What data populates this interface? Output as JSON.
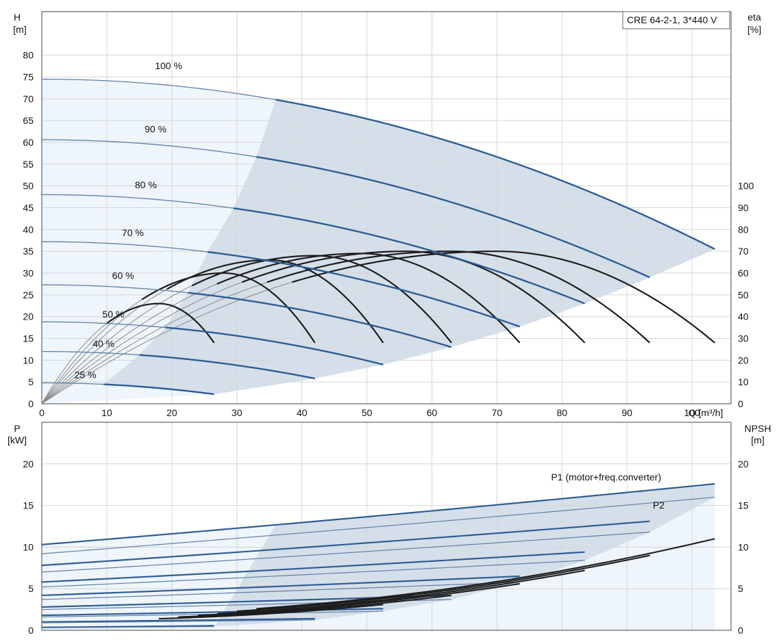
{
  "chart_data": [
    {
      "type": "line",
      "panel": "head-efficiency",
      "title": "CRE 64-2-1, 3*440 V",
      "x_axis": {
        "label": "Q [m³/h]",
        "ticks": [
          0,
          10,
          20,
          30,
          40,
          50,
          60,
          70,
          80,
          90,
          100
        ],
        "lim": [
          0,
          106
        ]
      },
      "y_left": {
        "label_line1": "H",
        "label_line2": "[m]",
        "ticks": [
          0,
          5,
          10,
          15,
          20,
          25,
          30,
          35,
          40,
          45,
          50,
          55,
          60,
          65,
          70,
          75,
          80
        ],
        "lim": [
          0,
          90
        ]
      },
      "y_right": {
        "label_line1": "eta",
        "label_line2": "[%]",
        "ticks": [
          0,
          10,
          20,
          30,
          40,
          50,
          60,
          70,
          80,
          90,
          100
        ],
        "lim": [
          0,
          180
        ]
      },
      "head_curves": [
        {
          "speed_label": "100 %",
          "shutoff_h": 74.5,
          "flow_min": 36,
          "flow_max": 103.5,
          "head_at_max": 35.5,
          "label_x": 19.5,
          "label_y": 76.8
        },
        {
          "speed_label": "90 %",
          "shutoff_h": 60.6,
          "flow_min": 33,
          "flow_max": 93.5,
          "head_at_max": 29.0,
          "label_x": 17.5,
          "label_y": 62.3
        },
        {
          "speed_label": "80 %",
          "shutoff_h": 48.0,
          "flow_min": 29.5,
          "flow_max": 83.5,
          "head_at_max": 23.0,
          "label_x": 16,
          "label_y": 49.5
        },
        {
          "speed_label": "70 %",
          "shutoff_h": 37.2,
          "flow_min": 25.5,
          "flow_max": 73.5,
          "head_at_max": 17.7,
          "label_x": 14,
          "label_y": 38.5
        },
        {
          "speed_label": "60 %",
          "shutoff_h": 27.3,
          "flow_min": 22.5,
          "flow_max": 63,
          "head_at_max": 13.0,
          "label_x": 12.5,
          "label_y": 28.7
        },
        {
          "speed_label": "50 %",
          "shutoff_h": 18.8,
          "flow_min": 19,
          "flow_max": 52.5,
          "head_at_max": 9.0,
          "label_x": 11,
          "label_y": 19.8
        },
        {
          "speed_label": "40 %",
          "shutoff_h": 12.0,
          "flow_min": 15,
          "flow_max": 42,
          "head_at_max": 5.8,
          "label_x": 9.5,
          "label_y": 13.0
        },
        {
          "speed_label": "25 %",
          "shutoff_h": 4.8,
          "flow_min": 9.5,
          "flow_max": 26.5,
          "head_at_max": 2.2,
          "label_x": 6.7,
          "label_y": 5.9
        }
      ],
      "efficiency_curves": [
        {
          "flow_max": 103.5,
          "peak_eta": 70,
          "bep_flow": 70
        },
        {
          "flow_max": 93.5,
          "peak_eta": 70,
          "bep_flow": 63
        },
        {
          "flow_max": 83.5,
          "peak_eta": 70,
          "bep_flow": 56
        },
        {
          "flow_max": 73.5,
          "peak_eta": 69,
          "bep_flow": 49
        },
        {
          "flow_max": 63,
          "peak_eta": 68,
          "bep_flow": 42
        },
        {
          "flow_max": 52.5,
          "peak_eta": 66,
          "bep_flow": 35
        },
        {
          "flow_max": 42,
          "peak_eta": 60,
          "bep_flow": 28
        },
        {
          "flow_max": 26.5,
          "peak_eta": 46,
          "bep_flow": 18
        }
      ]
    },
    {
      "type": "line",
      "panel": "power-npsh",
      "x_axis": {
        "ticks": [
          0,
          10,
          20,
          30,
          40,
          50,
          60,
          70,
          80,
          90,
          100
        ],
        "lim": [
          0,
          106
        ]
      },
      "y_left": {
        "label_line1": "P",
        "label_line2": "[kW]",
        "ticks": [
          0,
          5,
          10,
          15,
          20
        ],
        "lim": [
          0,
          25
        ]
      },
      "y_right": {
        "label_line1": "NPSH",
        "label_line2": "[m]",
        "ticks": [
          0,
          5,
          10,
          15,
          20
        ],
        "lim": [
          0,
          25
        ]
      },
      "series_labels": {
        "p1": "P1 (motor+freq.converter)",
        "p2": "P2"
      },
      "power_curves": [
        {
          "flow_max": 103.5,
          "p1_0": 10.3,
          "p1_max": 17.6,
          "p2_0": 9.2,
          "p2_max": 16.0
        },
        {
          "flow_max": 93.5,
          "p1_0": 7.8,
          "p1_max": 13.1,
          "p2_0": 7.0,
          "p2_max": 11.8
        },
        {
          "flow_max": 83.5,
          "p1_0": 5.8,
          "p1_max": 9.4,
          "p2_0": 5.2,
          "p2_max": 8.4
        },
        {
          "flow_max": 73.5,
          "p1_0": 4.2,
          "p1_max": 6.5,
          "p2_0": 3.7,
          "p2_max": 5.8
        },
        {
          "flow_max": 63,
          "p1_0": 2.8,
          "p1_max": 4.2,
          "p2_0": 2.5,
          "p2_max": 3.7
        },
        {
          "flow_max": 52.5,
          "p1_0": 1.8,
          "p1_max": 2.6,
          "p2_0": 1.6,
          "p2_max": 2.3
        },
        {
          "flow_max": 42,
          "p1_0": 1.0,
          "p1_max": 1.4,
          "p2_0": 0.9,
          "p2_max": 1.25
        },
        {
          "flow_max": 26.5,
          "p1_0": 0.35,
          "p1_max": 0.55,
          "p2_0": 0.3,
          "p2_max": 0.45
        }
      ],
      "npsh_curves": [
        {
          "flow_min": 33,
          "flow_max": 103.5,
          "npsh_min": 2.6,
          "npsh_max": 11.0
        },
        {
          "flow_min": 30,
          "flow_max": 93.5,
          "npsh_min": 2.3,
          "npsh_max": 9.0
        },
        {
          "flow_min": 27,
          "flow_max": 83.5,
          "npsh_min": 2.0,
          "npsh_max": 7.2
        },
        {
          "flow_min": 24,
          "flow_max": 73.5,
          "npsh_min": 1.8,
          "npsh_max": 5.6
        },
        {
          "flow_min": 21,
          "flow_max": 63,
          "npsh_min": 1.6,
          "npsh_max": 4.2
        },
        {
          "flow_min": 18,
          "flow_max": 52.5,
          "npsh_min": 1.4,
          "npsh_max": 3.1
        }
      ]
    }
  ],
  "colors": {
    "blue_curve": "#2e5c95",
    "blue_light_curve": "#5f7ea7",
    "efficiency_black": "#1c1c1c",
    "efficiency_gray": "#8a8a8a",
    "operating_fill": "#d5dfe9",
    "outer_fill": "#eef5fb",
    "grid": "#d5d5d5",
    "frame": "#444444"
  }
}
